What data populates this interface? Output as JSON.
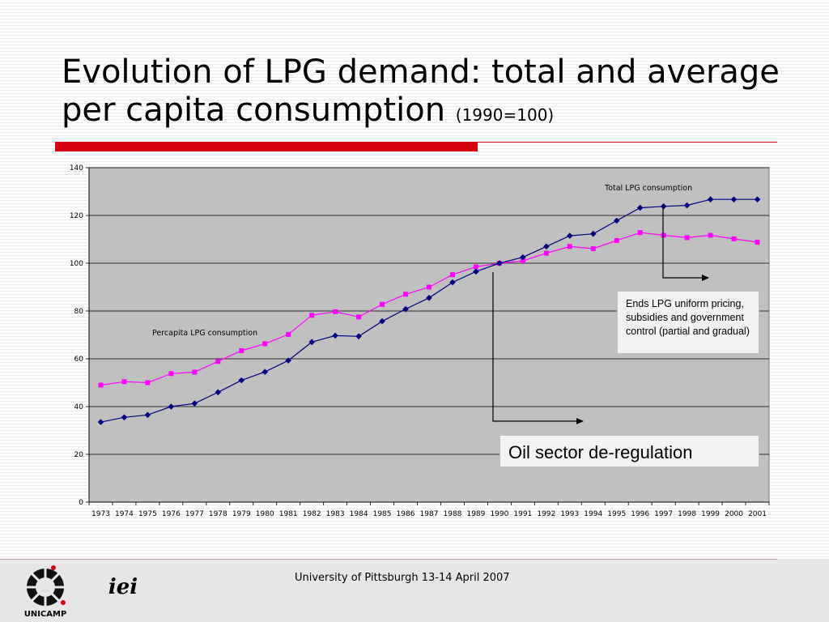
{
  "slide": {
    "title": "Evolution of LPG demand: total and average per capita consumption",
    "title_suffix": "(1990=100)"
  },
  "chart_data": {
    "type": "line",
    "categories": [
      "1973",
      "1974",
      "1975",
      "1976",
      "1977",
      "1978",
      "1979",
      "1980",
      "1981",
      "1982",
      "1983",
      "1984",
      "1985",
      "1986",
      "1987",
      "1988",
      "1989",
      "1990",
      "1991",
      "1992",
      "1993",
      "1994",
      "1995",
      "1996",
      "1997",
      "1998",
      "1999",
      "2000",
      "2001"
    ],
    "series": [
      {
        "name": "Total LPG consumption",
        "color": "#000080",
        "marker": "diamond",
        "values": [
          33.5,
          35.5,
          36.5,
          40,
          41.3,
          46,
          51,
          54.5,
          59.3,
          67,
          69.7,
          69.4,
          75.7,
          80.8,
          85.5,
          92,
          96.5,
          100,
          102.5,
          107,
          111.5,
          112.3,
          117.8,
          123.2,
          123.8,
          124.2,
          126.7,
          126.7,
          126.7
        ]
      },
      {
        "name": "Percapita LPG consumption",
        "color": "#ff00ff",
        "marker": "square",
        "values": [
          49,
          50.4,
          50,
          53.8,
          54.4,
          58.9,
          63.4,
          66.3,
          70.2,
          78.2,
          79.7,
          77.5,
          82.8,
          87,
          90,
          95.2,
          98.5,
          100,
          101,
          104.2,
          107,
          106.1,
          109.5,
          112.8,
          111.7,
          110.7,
          111.7,
          110.2,
          108.8
        ]
      }
    ],
    "ylim": [
      0,
      140
    ],
    "yticks": [
      0,
      20,
      40,
      60,
      80,
      100,
      120,
      140
    ],
    "grid": true,
    "plot_background": "#c0c0c0"
  },
  "callouts": {
    "pricing": "Ends LPG uniform pricing, subsidies and government control (partial and gradual)",
    "deregulation": "Oil sector de-regulation"
  },
  "footer": {
    "text": "University of Pittsburgh 13-14 April 2007",
    "logo_left": "UNICAMP",
    "logo_right": "iei"
  },
  "colors": {
    "accent_red": "#d7000f"
  }
}
